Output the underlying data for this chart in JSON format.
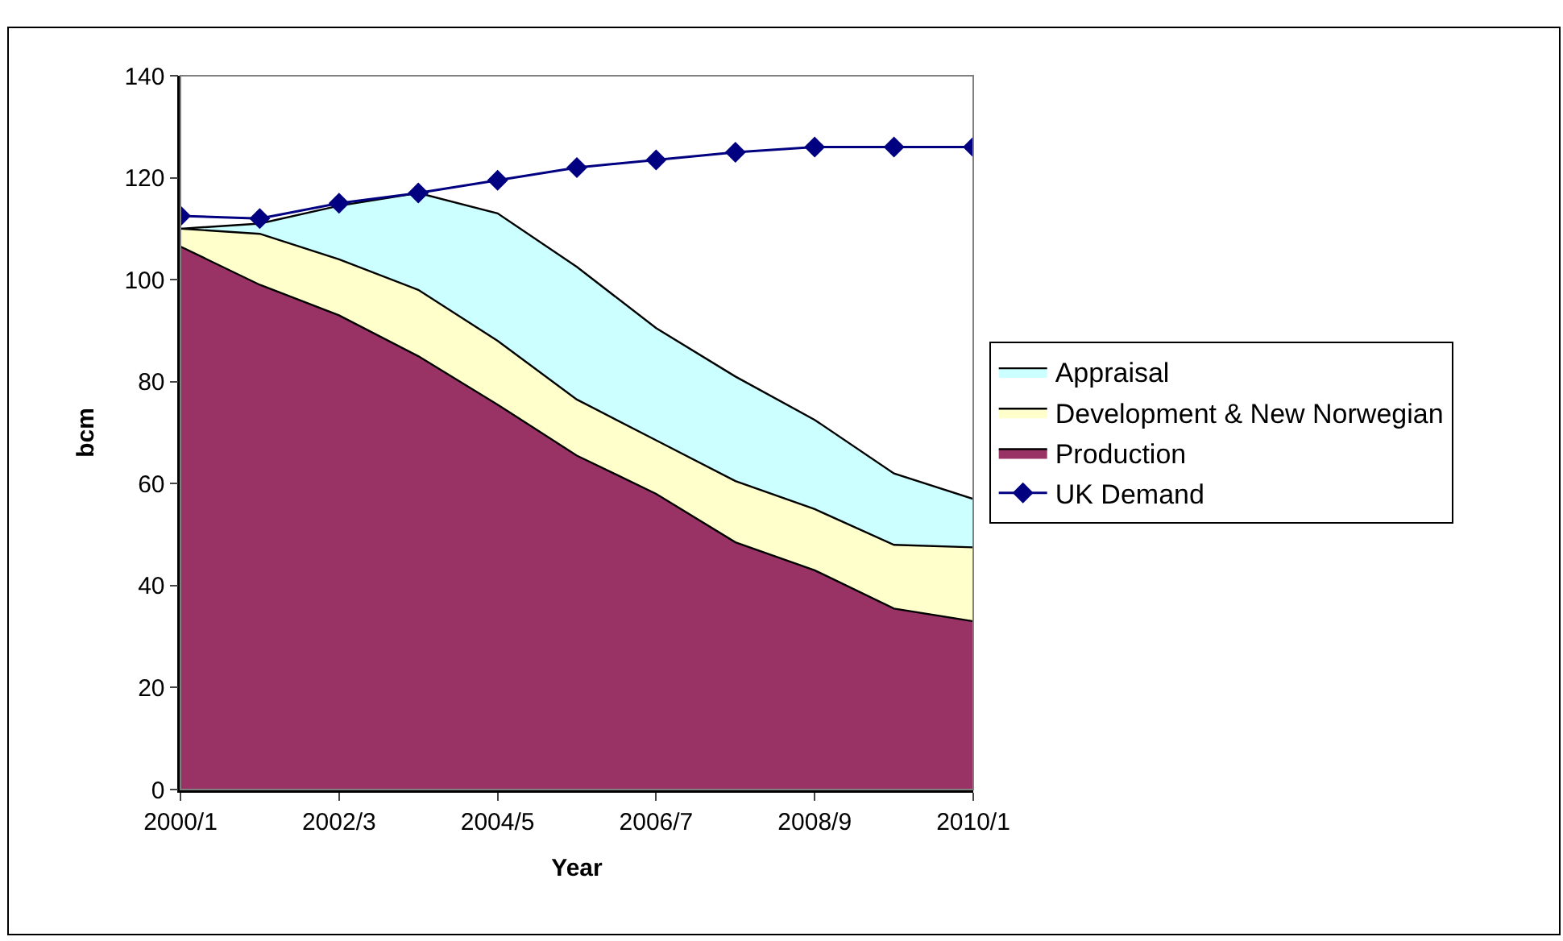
{
  "chart_data": {
    "type": "area",
    "xlabel": "Year",
    "ylabel": "bcm",
    "categories": [
      "2000/1",
      null,
      "2002/3",
      null,
      "2004/5",
      null,
      "2006/7",
      null,
      "2008/9",
      null,
      "2010/1"
    ],
    "stacked": true,
    "ylim": [
      0,
      140
    ],
    "yticks": [
      0,
      20,
      40,
      60,
      80,
      100,
      120,
      140
    ],
    "legend": "right",
    "series": [
      {
        "name": "Production",
        "color": "#993366",
        "values": [
          106.5,
          99,
          93,
          85,
          75.5,
          65.5,
          58,
          48.5,
          43,
          35.5,
          33
        ]
      },
      {
        "name": "Development & New Norwegian",
        "color": "#ffffcc",
        "values": [
          3.5,
          10,
          11,
          13,
          12.5,
          11,
          10.5,
          12,
          12,
          12.5,
          14.5
        ]
      },
      {
        "name": "Appraisal",
        "color": "#ccffff",
        "values": [
          0,
          2,
          10.5,
          19,
          25,
          26,
          22,
          20.5,
          17.5,
          14,
          9.5
        ]
      },
      {
        "name": "UK Demand",
        "type": "line",
        "color": "#000080",
        "marker": "diamond",
        "values": [
          112.5,
          112,
          115,
          117,
          119.5,
          122,
          123.5,
          125,
          126,
          126,
          126
        ]
      }
    ]
  }
}
